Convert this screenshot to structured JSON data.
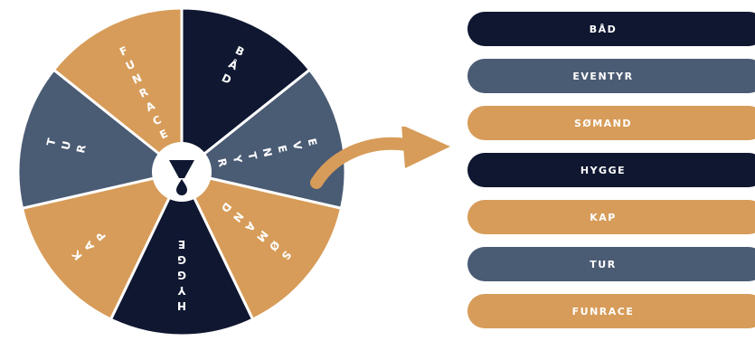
{
  "colors": {
    "navy": "#0f1731",
    "slate": "#4a5b74",
    "tan": "#d79c59",
    "white": "#ffffff"
  },
  "wheel": {
    "center_icon": "drop-v-logo-icon",
    "segments": [
      {
        "label": "BÅD",
        "color": "#0f1731"
      },
      {
        "label": "EVENTYR",
        "color": "#4a5b74"
      },
      {
        "label": "SØMAND",
        "color": "#d79c59"
      },
      {
        "label": "HYGGE",
        "color": "#0f1731"
      },
      {
        "label": "KAP",
        "color": "#d79c59"
      },
      {
        "label": "TUR",
        "color": "#4a5b74"
      },
      {
        "label": "FUNRACE",
        "color": "#d79c59"
      }
    ]
  },
  "arrow_icon": "curved-arrow-icon",
  "list": {
    "items": [
      {
        "label": "BÅD",
        "color": "#0f1731"
      },
      {
        "label": "EVENTYR",
        "color": "#4a5b74"
      },
      {
        "label": "SØMAND",
        "color": "#d79c59"
      },
      {
        "label": "HYGGE",
        "color": "#0f1731"
      },
      {
        "label": "KAP",
        "color": "#d79c59"
      },
      {
        "label": "TUR",
        "color": "#4a5b74"
      },
      {
        "label": "FUNRACE",
        "color": "#d79c59"
      }
    ]
  }
}
